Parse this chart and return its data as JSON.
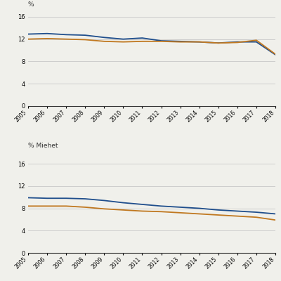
{
  "years": [
    2005,
    2006,
    2007,
    2008,
    2009,
    2010,
    2011,
    2012,
    2013,
    2014,
    2015,
    2016,
    2017,
    2018
  ],
  "top_blue": [
    12.9,
    13.0,
    12.8,
    12.7,
    12.3,
    12.0,
    12.2,
    11.7,
    11.6,
    11.5,
    11.3,
    11.5,
    11.5,
    9.2
  ],
  "top_orange": [
    12.0,
    12.1,
    12.0,
    11.9,
    11.6,
    11.5,
    11.6,
    11.6,
    11.5,
    11.5,
    11.3,
    11.4,
    11.8,
    9.3
  ],
  "bot_blue": [
    9.9,
    9.8,
    9.8,
    9.7,
    9.4,
    9.0,
    8.7,
    8.4,
    8.2,
    8.0,
    7.7,
    7.5,
    7.3,
    7.0
  ],
  "bot_orange": [
    8.4,
    8.4,
    8.4,
    8.2,
    7.9,
    7.7,
    7.5,
    7.4,
    7.2,
    7.0,
    6.8,
    6.6,
    6.4,
    5.9
  ],
  "color_blue": "#1F4E8C",
  "color_orange": "#C07820",
  "ylabel_top": "%",
  "label_bottom": "% Miehet",
  "yticks": [
    0,
    4,
    8,
    12,
    16
  ],
  "ylim": [
    0,
    17
  ],
  "background": "#F0F0EB",
  "grid_color": "#C8C8C8",
  "axis_color": "#333333"
}
